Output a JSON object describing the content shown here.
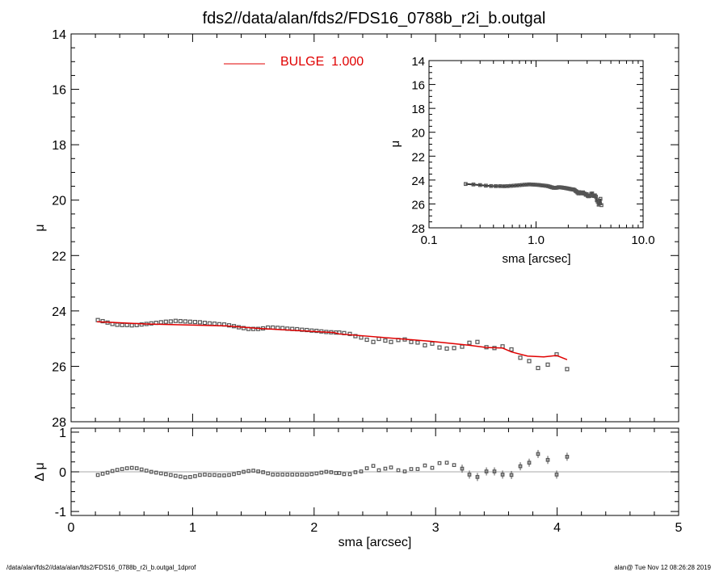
{
  "title": "fds2//data/alan/fds2/FDS16_0788b_r2i_b.outgal",
  "footer": {
    "left": "/data/alan/fds2//data/alan/fds2/FDS16_0788b_r2i_b.outgal_1dprof",
    "right": "alan@  Tue Nov 12 08:26:28 2019"
  },
  "colors": {
    "model": "#e00000",
    "data": "#555555",
    "axis": "#000000",
    "zero_line": "#aaaaaa"
  },
  "chart_data": [
    {
      "id": "main",
      "type": "scatter",
      "xlabel": "sma [arcsec]",
      "ylabel": "μ",
      "xlim": [
        0,
        5
      ],
      "ylim": [
        28,
        14
      ],
      "y_inverted": true,
      "xticks": [
        "0",
        "1",
        "2",
        "3",
        "4",
        "5"
      ],
      "yticks": [
        "14",
        "16",
        "18",
        "20",
        "22",
        "24",
        "26",
        "28"
      ],
      "legend": {
        "label": "BULGE  1.000",
        "placement": "top-center"
      },
      "data_points": {
        "x": [
          0.22,
          0.26,
          0.3,
          0.34,
          0.38,
          0.42,
          0.46,
          0.5,
          0.54,
          0.58,
          0.62,
          0.66,
          0.7,
          0.74,
          0.78,
          0.82,
          0.86,
          0.9,
          0.94,
          0.98,
          1.02,
          1.06,
          1.1,
          1.14,
          1.18,
          1.22,
          1.26,
          1.3,
          1.34,
          1.38,
          1.42,
          1.46,
          1.5,
          1.54,
          1.58,
          1.62,
          1.66,
          1.7,
          1.74,
          1.78,
          1.82,
          1.86,
          1.9,
          1.94,
          1.98,
          2.02,
          2.06,
          2.1,
          2.14,
          2.18,
          2.207,
          2.247,
          2.294,
          2.34,
          2.387,
          2.434,
          2.487,
          2.533,
          2.586,
          2.633,
          2.693,
          2.746,
          2.799,
          2.852,
          2.912,
          2.972,
          3.032,
          3.092,
          3.152,
          3.218,
          3.278,
          3.344,
          3.418,
          3.484,
          3.551,
          3.624,
          3.697,
          3.77,
          3.843,
          3.923,
          3.996,
          4.082
        ],
        "y": [
          24.33,
          24.37,
          24.42,
          24.47,
          24.5,
          24.51,
          24.51,
          24.52,
          24.51,
          24.49,
          24.47,
          24.45,
          24.43,
          24.41,
          24.39,
          24.38,
          24.36,
          24.37,
          24.38,
          24.39,
          24.4,
          24.41,
          24.43,
          24.45,
          24.46,
          24.48,
          24.49,
          24.52,
          24.55,
          24.59,
          24.62,
          24.65,
          24.65,
          24.65,
          24.63,
          24.6,
          24.6,
          24.61,
          24.62,
          24.64,
          24.65,
          24.66,
          24.68,
          24.69,
          24.71,
          24.72,
          24.74,
          24.76,
          24.77,
          24.78,
          24.78,
          24.8,
          24.83,
          24.91,
          24.96,
          25.04,
          25.12,
          25.01,
          25.07,
          25.12,
          25.05,
          25.03,
          25.12,
          25.14,
          25.24,
          25.18,
          25.32,
          25.36,
          25.34,
          25.29,
          25.15,
          25.12,
          25.31,
          25.34,
          25.28,
          25.39,
          25.69,
          25.81,
          26.06,
          25.94,
          25.57,
          26.1
        ]
      },
      "model_line": {
        "name": "BULGE",
        "x": [
          0.213,
          0.612,
          1.277,
          1.543,
          2.163,
          2.207,
          2.972,
          3.278,
          3.418,
          3.551,
          3.624,
          3.757,
          3.89,
          3.996,
          4.082
        ],
        "y": [
          24.39,
          24.47,
          24.54,
          24.63,
          24.78,
          24.83,
          25.1,
          25.24,
          25.32,
          25.34,
          25.48,
          25.63,
          25.66,
          25.61,
          25.76
        ]
      }
    },
    {
      "id": "residual",
      "type": "scatter",
      "xlabel": "sma [arcsec]",
      "ylabel": "Δ μ",
      "xlim": [
        0,
        5
      ],
      "ylim": [
        -1.1,
        1.1
      ],
      "yticks": [
        "1",
        "0",
        "-1"
      ],
      "reference_line": 0,
      "data_points": {
        "x": [
          0.22,
          0.26,
          0.3,
          0.34,
          0.38,
          0.42,
          0.46,
          0.5,
          0.54,
          0.58,
          0.62,
          0.66,
          0.7,
          0.74,
          0.78,
          0.82,
          0.86,
          0.9,
          0.94,
          0.98,
          1.02,
          1.06,
          1.1,
          1.14,
          1.18,
          1.22,
          1.26,
          1.3,
          1.34,
          1.38,
          1.42,
          1.46,
          1.5,
          1.54,
          1.58,
          1.62,
          1.66,
          1.7,
          1.74,
          1.78,
          1.82,
          1.86,
          1.9,
          1.94,
          1.98,
          2.02,
          2.06,
          2.1,
          2.14,
          2.18,
          2.207,
          2.247,
          2.294,
          2.34,
          2.387,
          2.434,
          2.487,
          2.533,
          2.586,
          2.633,
          2.693,
          2.746,
          2.799,
          2.852,
          2.912,
          2.972,
          3.032,
          3.092,
          3.152,
          3.218,
          3.278,
          3.344,
          3.418,
          3.484,
          3.551,
          3.624,
          3.697,
          3.77,
          3.843,
          3.923,
          3.996,
          4.082
        ],
        "y": [
          -0.08,
          -0.05,
          -0.02,
          0.02,
          0.05,
          0.07,
          0.09,
          0.1,
          0.09,
          0.06,
          0.03,
          0.0,
          -0.02,
          -0.04,
          -0.06,
          -0.08,
          -0.1,
          -0.12,
          -0.14,
          -0.13,
          -0.11,
          -0.08,
          -0.07,
          -0.08,
          -0.08,
          -0.09,
          -0.09,
          -0.08,
          -0.06,
          -0.03,
          0.0,
          0.02,
          0.03,
          0.01,
          -0.01,
          -0.04,
          -0.07,
          -0.07,
          -0.07,
          -0.07,
          -0.07,
          -0.07,
          -0.07,
          -0.07,
          -0.06,
          -0.04,
          -0.02,
          0.0,
          -0.01,
          -0.03,
          -0.03,
          -0.06,
          -0.06,
          -0.01,
          0.01,
          0.09,
          0.15,
          0.04,
          0.08,
          0.11,
          0.04,
          0.01,
          0.07,
          0.07,
          0.16,
          0.1,
          0.22,
          0.23,
          0.17,
          0.08,
          -0.07,
          -0.13,
          0.01,
          0.01,
          -0.07,
          -0.08,
          0.14,
          0.23,
          0.45,
          0.3,
          -0.07,
          0.38
        ]
      }
    },
    {
      "id": "inset",
      "type": "scatter",
      "xlabel": "sma [arcsec]",
      "ylabel": "μ",
      "x_scale": "log",
      "xlim": [
        0.1,
        10.0
      ],
      "ylim": [
        28,
        14
      ],
      "y_inverted": true,
      "xticks": [
        "0.1",
        "1.0",
        "10.0"
      ],
      "yticks": [
        "14",
        "16",
        "18",
        "20",
        "22",
        "24",
        "26",
        "28"
      ],
      "data_source": "main"
    }
  ]
}
